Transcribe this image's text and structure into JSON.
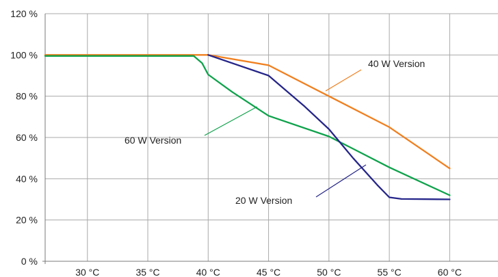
{
  "chart_data": {
    "type": "line",
    "title": "",
    "xlabel": "",
    "ylabel": "",
    "xlim": [
      26.5,
      64
    ],
    "ylim": [
      0,
      120
    ],
    "x_ticks": [
      30,
      35,
      40,
      45,
      50,
      55,
      60
    ],
    "x_tick_labels": [
      "30 °C",
      "35 °C",
      "40 °C",
      "45 °C",
      "50 °C",
      "55 °C",
      "60 °C"
    ],
    "y_ticks": [
      0,
      20,
      40,
      60,
      80,
      100,
      120
    ],
    "y_tick_labels": [
      "0 %",
      "20 %",
      "40 %",
      "60 %",
      "80 %",
      "100 %",
      "120 %"
    ],
    "grid": true,
    "legend": "none",
    "series": [
      {
        "name": "40 W Version",
        "color": "#f07f1e",
        "points": [
          [
            26.5,
            100
          ],
          [
            40,
            100
          ],
          [
            45,
            95
          ],
          [
            50,
            80
          ],
          [
            55,
            65
          ],
          [
            60,
            45
          ]
        ]
      },
      {
        "name": "60 W Version",
        "color": "#0ea24b",
        "points": [
          [
            26.5,
            99.5
          ],
          [
            38.8,
            99.5
          ],
          [
            39.5,
            96
          ],
          [
            40,
            90.5
          ],
          [
            42,
            82
          ],
          [
            45,
            70.5
          ],
          [
            50,
            60.5
          ],
          [
            55,
            45.5
          ],
          [
            60,
            32
          ]
        ]
      },
      {
        "name": "20 W Version",
        "color": "#25258a",
        "points": [
          [
            40,
            100
          ],
          [
            45,
            90
          ],
          [
            48,
            75
          ],
          [
            50,
            64
          ],
          [
            52,
            50
          ],
          [
            54,
            37
          ],
          [
            55,
            31
          ],
          [
            56,
            30.2
          ],
          [
            60,
            30
          ]
        ]
      }
    ],
    "annotations": [
      {
        "text": "40 W Version",
        "series": "40 W Version"
      },
      {
        "text": "60 W Version",
        "series": "60 W Version"
      },
      {
        "text": "20 W Version",
        "series": "20 W Version"
      }
    ]
  }
}
